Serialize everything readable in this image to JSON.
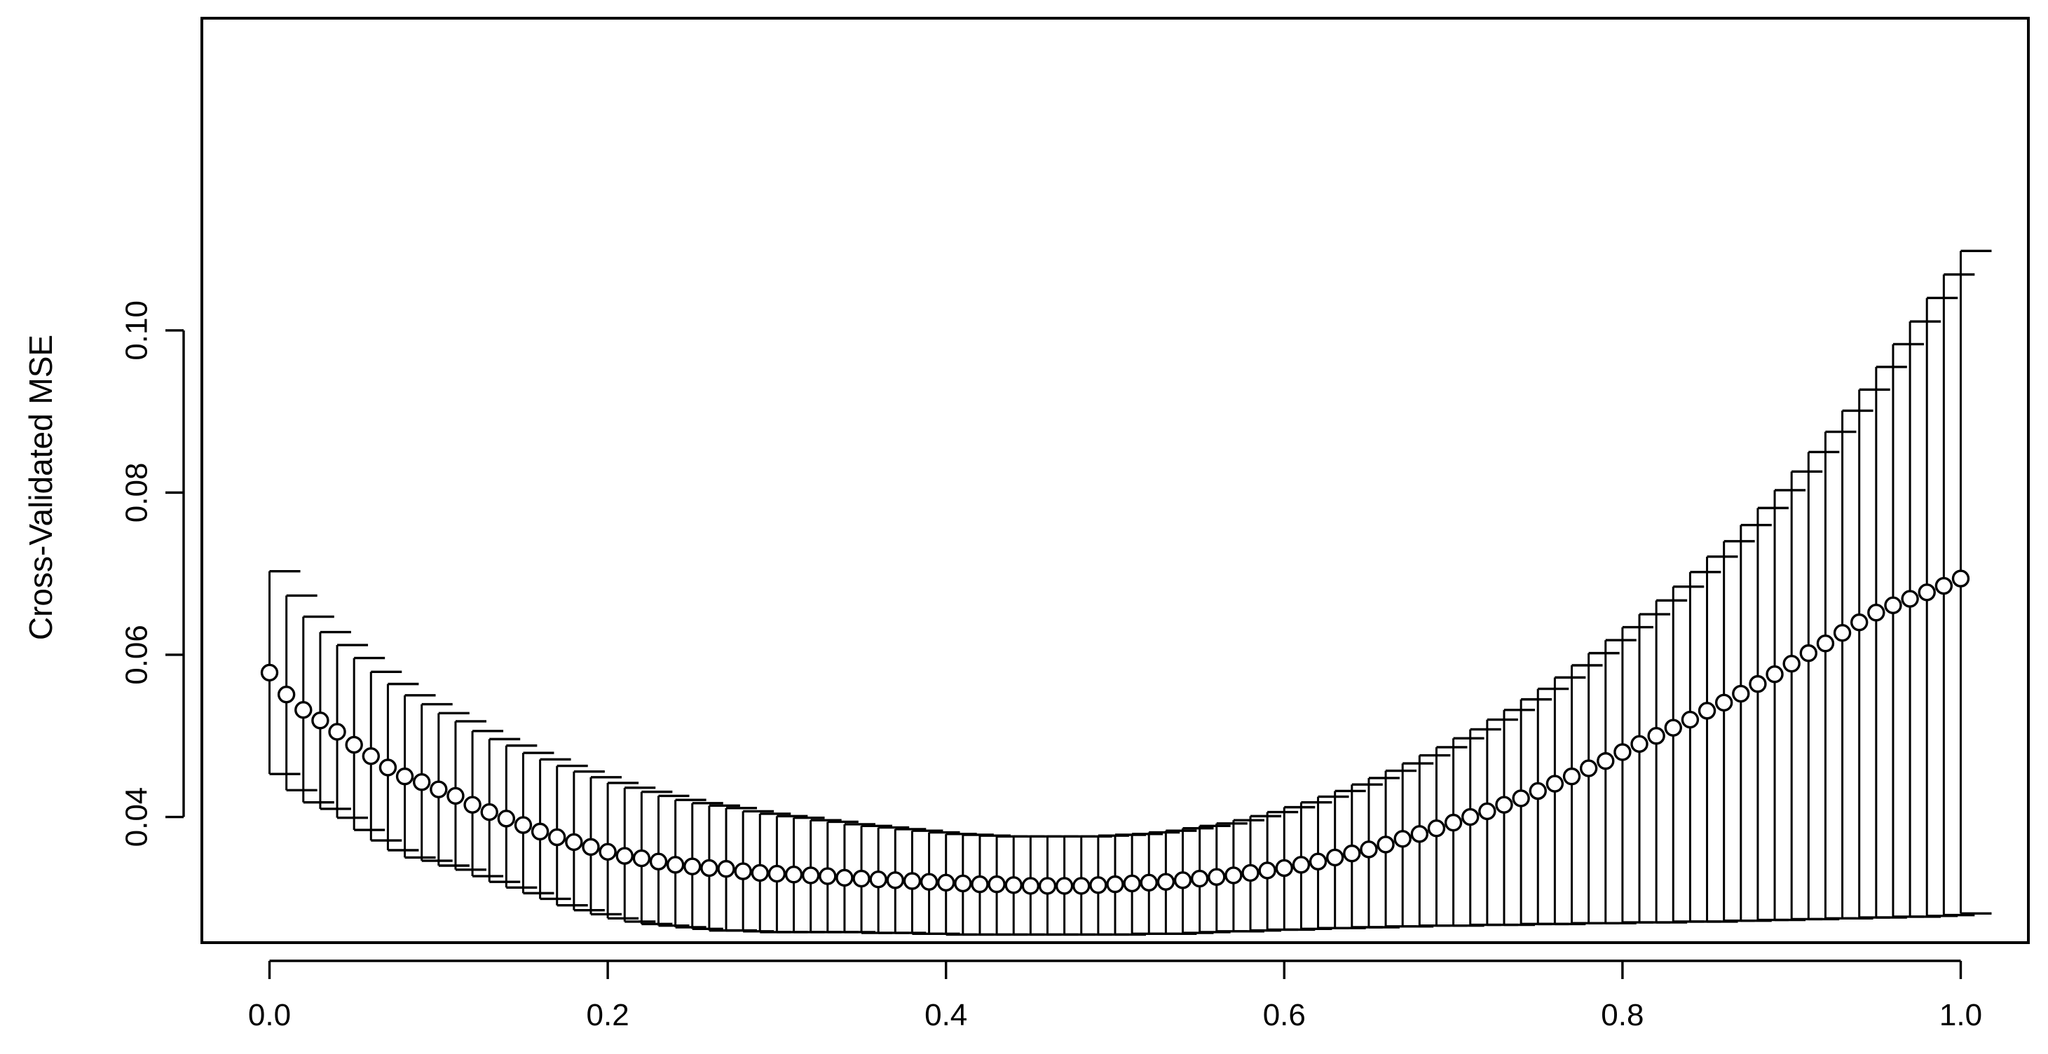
{
  "chart_data": {
    "type": "scatter",
    "title": "",
    "xlabel": "",
    "ylabel": "Cross-Validated MSE",
    "xlim": [
      -0.04,
      1.04
    ],
    "ylim": [
      0.0245,
      0.1385
    ],
    "grid": false,
    "legend": "none",
    "x_ticks": [
      0.0,
      0.2,
      0.4,
      0.6,
      0.8,
      1.0
    ],
    "x_tick_labels": [
      "0.0",
      "0.2",
      "0.4",
      "0.6",
      "0.8",
      "1.0"
    ],
    "y_ticks": [
      0.04,
      0.06,
      0.08,
      0.1
    ],
    "y_tick_labels": [
      "0.04",
      "0.06",
      "0.08",
      "0.10"
    ],
    "point_style": "open-circle",
    "error_bars": true,
    "x": [
      0.0,
      0.01,
      0.02,
      0.03,
      0.04,
      0.05,
      0.06,
      0.07,
      0.08,
      0.09,
      0.1,
      0.11,
      0.12,
      0.13,
      0.14,
      0.15,
      0.16,
      0.17,
      0.18,
      0.19,
      0.2,
      0.21,
      0.22,
      0.23,
      0.24,
      0.25,
      0.26,
      0.27,
      0.28,
      0.29,
      0.3,
      0.31,
      0.32,
      0.33,
      0.34,
      0.35,
      0.36,
      0.37,
      0.38,
      0.39,
      0.4,
      0.41,
      0.42,
      0.43,
      0.44,
      0.45,
      0.46,
      0.47,
      0.48,
      0.49,
      0.5,
      0.51,
      0.52,
      0.53,
      0.54,
      0.55,
      0.56,
      0.57,
      0.58,
      0.59,
      0.6,
      0.61,
      0.62,
      0.63,
      0.64,
      0.65,
      0.66,
      0.67,
      0.68,
      0.69,
      0.7,
      0.71,
      0.72,
      0.73,
      0.74,
      0.75,
      0.76,
      0.77,
      0.78,
      0.79,
      0.8,
      0.81,
      0.82,
      0.83,
      0.84,
      0.85,
      0.86,
      0.87,
      0.88,
      0.89,
      0.9,
      0.91,
      0.92,
      0.93,
      0.94,
      0.95,
      0.96,
      0.97,
      0.98,
      0.99,
      1.0
    ],
    "y": [
      0.0578,
      0.0551,
      0.0532,
      0.0519,
      0.0505,
      0.0489,
      0.0475,
      0.0461,
      0.045,
      0.0443,
      0.0434,
      0.0426,
      0.0415,
      0.0406,
      0.0398,
      0.039,
      0.0382,
      0.0375,
      0.0369,
      0.0363,
      0.0357,
      0.0352,
      0.0349,
      0.0345,
      0.0341,
      0.0339,
      0.0337,
      0.0336,
      0.0333,
      0.0331,
      0.033,
      0.0329,
      0.0328,
      0.0327,
      0.0325,
      0.0324,
      0.0323,
      0.0322,
      0.0321,
      0.032,
      0.0319,
      0.0318,
      0.0317,
      0.0317,
      0.0316,
      0.0315,
      0.0315,
      0.0315,
      0.0315,
      0.0316,
      0.0317,
      0.0318,
      0.0319,
      0.032,
      0.0322,
      0.0324,
      0.0326,
      0.0328,
      0.0331,
      0.0334,
      0.0337,
      0.0341,
      0.0345,
      0.035,
      0.0355,
      0.036,
      0.0366,
      0.0373,
      0.0379,
      0.0386,
      0.0393,
      0.04,
      0.0407,
      0.0415,
      0.0423,
      0.0432,
      0.0441,
      0.045,
      0.046,
      0.0469,
      0.048,
      0.049,
      0.05,
      0.051,
      0.052,
      0.0531,
      0.0541,
      0.0552,
      0.0564,
      0.0576,
      0.0589,
      0.0602,
      0.0614,
      0.0627,
      0.064,
      0.0652,
      0.0661,
      0.0669,
      0.0677,
      0.0685,
      0.0694
    ],
    "y_upper": [
      0.0703,
      0.0673,
      0.0647,
      0.0628,
      0.0612,
      0.0596,
      0.0579,
      0.0564,
      0.055,
      0.0539,
      0.0528,
      0.0518,
      0.0506,
      0.0496,
      0.0488,
      0.0479,
      0.0471,
      0.0463,
      0.0456,
      0.0449,
      0.0442,
      0.0436,
      0.0431,
      0.0426,
      0.0421,
      0.0417,
      0.0414,
      0.0411,
      0.0407,
      0.0404,
      0.0401,
      0.0399,
      0.0396,
      0.0394,
      0.0391,
      0.0389,
      0.0387,
      0.0385,
      0.0383,
      0.0381,
      0.0379,
      0.0378,
      0.0377,
      0.0376,
      0.0376,
      0.0376,
      0.0376,
      0.0376,
      0.0376,
      0.0377,
      0.0378,
      0.0379,
      0.0381,
      0.0383,
      0.0386,
      0.0389,
      0.0392,
      0.0396,
      0.0401,
      0.0406,
      0.0412,
      0.0418,
      0.0425,
      0.0432,
      0.044,
      0.0448,
      0.0457,
      0.0466,
      0.0476,
      0.0486,
      0.0497,
      0.0508,
      0.052,
      0.0532,
      0.0545,
      0.0558,
      0.0572,
      0.0587,
      0.0602,
      0.0618,
      0.0634,
      0.065,
      0.0667,
      0.0684,
      0.0702,
      0.0721,
      0.074,
      0.076,
      0.0781,
      0.0803,
      0.0826,
      0.085,
      0.0875,
      0.0901,
      0.0927,
      0.0955,
      0.0983,
      0.1011,
      0.104,
      0.1069,
      0.1098
    ],
    "y_lower": [
      0.0453,
      0.0433,
      0.0418,
      0.041,
      0.0399,
      0.0384,
      0.0371,
      0.0359,
      0.035,
      0.0346,
      0.034,
      0.0335,
      0.0327,
      0.032,
      0.0313,
      0.0306,
      0.0299,
      0.0291,
      0.0285,
      0.028,
      0.0275,
      0.0271,
      0.0268,
      0.0266,
      0.0264,
      0.0262,
      0.026,
      0.026,
      0.0259,
      0.0258,
      0.0258,
      0.0258,
      0.0258,
      0.0258,
      0.0258,
      0.0257,
      0.0257,
      0.0257,
      0.0256,
      0.0256,
      0.0255,
      0.0255,
      0.0255,
      0.0255,
      0.0255,
      0.0255,
      0.0255,
      0.0255,
      0.0255,
      0.0255,
      0.0255,
      0.0256,
      0.0256,
      0.0256,
      0.0257,
      0.0258,
      0.0259,
      0.0259,
      0.026,
      0.0261,
      0.0261,
      0.0262,
      0.0263,
      0.0263,
      0.0264,
      0.0264,
      0.0265,
      0.0265,
      0.0266,
      0.0266,
      0.0266,
      0.0267,
      0.0267,
      0.0267,
      0.0268,
      0.0268,
      0.0268,
      0.0269,
      0.0269,
      0.0269,
      0.027,
      0.027,
      0.027,
      0.0271,
      0.0271,
      0.0271,
      0.0272,
      0.0272,
      0.0273,
      0.0273,
      0.0274,
      0.0274,
      0.0275,
      0.0275,
      0.0276,
      0.0276,
      0.0277,
      0.0277,
      0.0278,
      0.0279,
      0.0281
    ]
  }
}
